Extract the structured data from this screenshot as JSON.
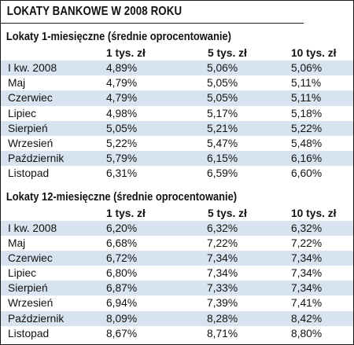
{
  "title": "LOKATY BANKOWE W 2008 ROKU",
  "columns": [
    "",
    "1 tys. zł",
    "5 tys. zł",
    "10 tys. zł"
  ],
  "sections": [
    {
      "title": "Lokaty 1-miesięczne (średnie oprocentowanie)",
      "rows": [
        {
          "month": "I kw. 2008",
          "v1": "4,89%",
          "v5": "5,06%",
          "v10": "5,06%"
        },
        {
          "month": "Maj",
          "v1": "4,79%",
          "v5": "5,05%",
          "v10": "5,11%"
        },
        {
          "month": "Czerwiec",
          "v1": "4,79%",
          "v5": "5,05%",
          "v10": "5,11%"
        },
        {
          "month": "Lipiec",
          "v1": "4,98%",
          "v5": "5,17%",
          "v10": "5,18%"
        },
        {
          "month": "Sierpień",
          "v1": "5,05%",
          "v5": "5,21%",
          "v10": "5,22%"
        },
        {
          "month": "Wrzesień",
          "v1": "5,22%",
          "v5": "5,47%",
          "v10": "5,48%"
        },
        {
          "month": "Październik",
          "v1": "5,79%",
          "v5": "6,15%",
          "v10": "6,16%"
        },
        {
          "month": "Listopad",
          "v1": "6,31%",
          "v5": "6,59%",
          "v10": "6,60%"
        }
      ]
    },
    {
      "title": "Lokaty 12-miesięczne (średnie oprocentowanie)",
      "rows": [
        {
          "month": "I kw. 2008",
          "v1": "6,20%",
          "v5": "6,32%",
          "v10": "6,32%"
        },
        {
          "month": "Maj",
          "v1": "6,68%",
          "v5": "7,22%",
          "v10": "7,22%"
        },
        {
          "month": "Czerwiec",
          "v1": "6,72%",
          "v5": "7,34%",
          "v10": "7,34%"
        },
        {
          "month": "Lipiec",
          "v1": "6,80%",
          "v5": "7,34%",
          "v10": "7,34%"
        },
        {
          "month": "Sierpień",
          "v1": "6,87%",
          "v5": "7,33%",
          "v10": "7,34%"
        },
        {
          "month": "Wrzesień",
          "v1": "6,94%",
          "v5": "7,39%",
          "v10": "7,41%"
        },
        {
          "month": "Październik",
          "v1": "8,09%",
          "v5": "8,28%",
          "v10": "8,42%"
        },
        {
          "month": "Listopad",
          "v1": "8,67%",
          "v5": "8,71%",
          "v10": "8,80%"
        }
      ]
    }
  ],
  "colors": {
    "row_shade": "#d7e3ef",
    "border": "#1a1a1a",
    "text": "#111111"
  }
}
